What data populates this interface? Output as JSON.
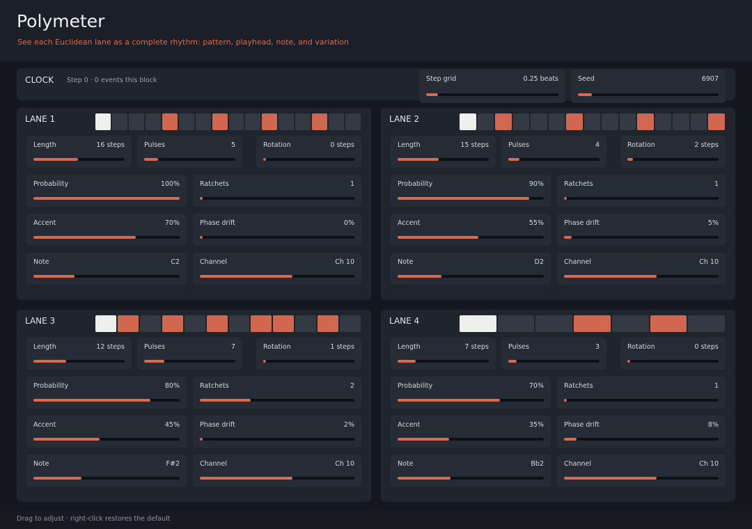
{
  "header": {
    "title": "Polymeter",
    "subtitle": "See each Euclidean lane as a complete rhythm: pattern, playhead, note, and variation"
  },
  "clock": {
    "label": "CLOCK",
    "status": "Step 0 · 0 events this block",
    "step_grid": {
      "label": "Step grid",
      "value": "0.25 beats",
      "fill": 0.09
    },
    "seed": {
      "label": "Seed",
      "value": "6907",
      "fill": 0.1
    }
  },
  "lanes": [
    {
      "title": "LANE 1",
      "pattern": [
        2,
        0,
        0,
        0,
        1,
        0,
        0,
        1,
        0,
        0,
        1,
        0,
        0,
        1,
        0,
        0
      ],
      "params": [
        {
          "label": "Length",
          "value": "16 steps",
          "fill": 0.49
        },
        {
          "label": "Pulses",
          "value": "5",
          "fill": 0.15
        },
        {
          "label": "Rotation",
          "value": "0 steps",
          "fill": 0.01
        },
        {
          "label": "Probability",
          "value": "100%",
          "fill": 1.0
        },
        {
          "label": "Ratchets",
          "value": "1",
          "fill": 0.01
        },
        {
          "label": "Accent",
          "value": "70%",
          "fill": 0.7
        },
        {
          "label": "Phase drift",
          "value": "0%",
          "fill": 0.01
        },
        {
          "label": "Note",
          "value": "C2",
          "fill": 0.28
        },
        {
          "label": "Channel",
          "value": "Ch 10",
          "fill": 0.6
        }
      ]
    },
    {
      "title": "LANE 2",
      "pattern": [
        2,
        0,
        1,
        0,
        0,
        0,
        1,
        0,
        0,
        0,
        1,
        0,
        0,
        0,
        1
      ],
      "params": [
        {
          "label": "Length",
          "value": "15 steps",
          "fill": 0.45
        },
        {
          "label": "Pulses",
          "value": "4",
          "fill": 0.12
        },
        {
          "label": "Rotation",
          "value": "2 steps",
          "fill": 0.06
        },
        {
          "label": "Probability",
          "value": "90%",
          "fill": 0.9
        },
        {
          "label": "Ratchets",
          "value": "1",
          "fill": 0.01
        },
        {
          "label": "Accent",
          "value": "55%",
          "fill": 0.55
        },
        {
          "label": "Phase drift",
          "value": "5%",
          "fill": 0.05
        },
        {
          "label": "Note",
          "value": "D2",
          "fill": 0.3
        },
        {
          "label": "Channel",
          "value": "Ch 10",
          "fill": 0.6
        }
      ]
    },
    {
      "title": "LANE 3",
      "pattern": [
        2,
        1,
        0,
        1,
        0,
        1,
        0,
        1,
        1,
        0,
        1,
        0
      ],
      "params": [
        {
          "label": "Length",
          "value": "12 steps",
          "fill": 0.36
        },
        {
          "label": "Pulses",
          "value": "7",
          "fill": 0.22
        },
        {
          "label": "Rotation",
          "value": "1 steps",
          "fill": 0.03
        },
        {
          "label": "Probability",
          "value": "80%",
          "fill": 0.8
        },
        {
          "label": "Ratchets",
          "value": "2",
          "fill": 0.33
        },
        {
          "label": "Accent",
          "value": "45%",
          "fill": 0.45
        },
        {
          "label": "Phase drift",
          "value": "2%",
          "fill": 0.02
        },
        {
          "label": "Note",
          "value": "F#2",
          "fill": 0.33
        },
        {
          "label": "Channel",
          "value": "Ch 10",
          "fill": 0.6
        }
      ]
    },
    {
      "title": "LANE 4",
      "pattern": [
        2,
        0,
        0,
        1,
        0,
        1,
        0
      ],
      "params": [
        {
          "label": "Length",
          "value": "7 steps",
          "fill": 0.2
        },
        {
          "label": "Pulses",
          "value": "3",
          "fill": 0.09
        },
        {
          "label": "Rotation",
          "value": "0 steps",
          "fill": 0.01
        },
        {
          "label": "Probability",
          "value": "70%",
          "fill": 0.7
        },
        {
          "label": "Ratchets",
          "value": "1",
          "fill": 0.01
        },
        {
          "label": "Accent",
          "value": "35%",
          "fill": 0.35
        },
        {
          "label": "Phase drift",
          "value": "8%",
          "fill": 0.08
        },
        {
          "label": "Note",
          "value": "Bb2",
          "fill": 0.36
        },
        {
          "label": "Channel",
          "value": "Ch 10",
          "fill": 0.6
        }
      ]
    }
  ],
  "footer": {
    "hint": "Drag to adjust · right-click restores the default"
  },
  "colors": {
    "accent": "#d9694f",
    "playhead": "#eef0ec",
    "step_off": "#333a44"
  }
}
